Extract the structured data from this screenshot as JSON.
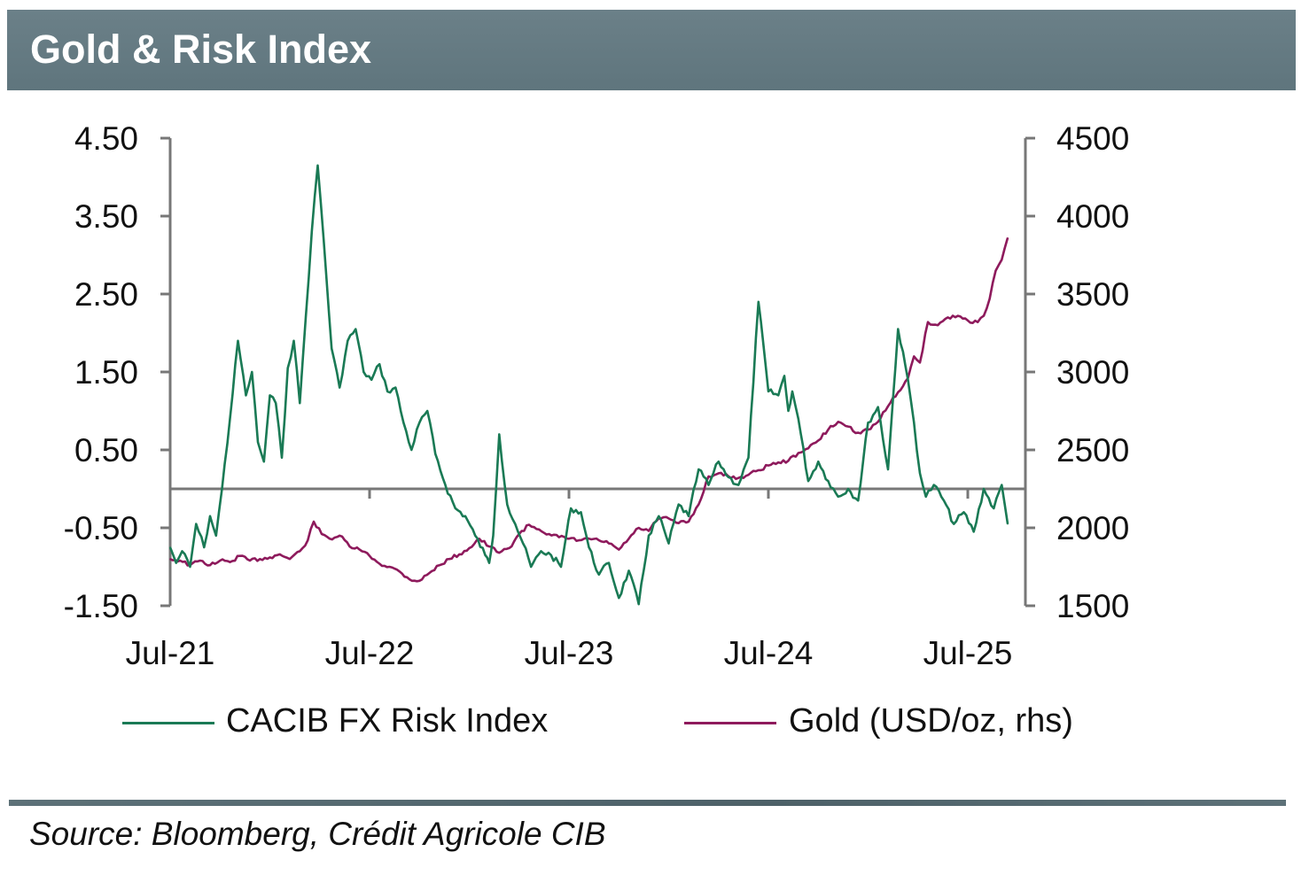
{
  "header": {
    "title": "Gold & Risk Index"
  },
  "footer": {
    "source": "Source: Bloomberg, Crédit Agricole CIB"
  },
  "colors": {
    "risk_index": "#1a7a55",
    "gold": "#8e1a5c",
    "axis": "#777777",
    "title_bar": "#667b83"
  },
  "chart_data": {
    "type": "line",
    "title": "Gold & Risk Index",
    "x_tick_labels": [
      "Jul-21",
      "Jul-22",
      "Jul-23",
      "Jul-24",
      "Jul-25"
    ],
    "x_range": [
      2021.5,
      2025.75
    ],
    "y_left": {
      "ticks": [
        "4.50",
        "3.50",
        "2.50",
        "1.50",
        "0.50",
        "-0.50",
        "-1.50"
      ],
      "range": [
        -1.5,
        4.5
      ]
    },
    "y_right": {
      "ticks": [
        "4500",
        "4000",
        "3500",
        "3000",
        "2500",
        "2000",
        "1500"
      ],
      "range": [
        1500,
        4500
      ]
    },
    "zero_line": 0,
    "legend": {
      "position": "bottom",
      "entries": [
        "CACIB FX Risk Index",
        "Gold (USD/oz, rhs)"
      ]
    },
    "series": [
      {
        "name": "CACIB FX Risk Index",
        "axis": "left",
        "x": [
          2021.5,
          2021.53,
          2021.56,
          2021.6,
          2021.63,
          2021.67,
          2021.7,
          2021.73,
          2021.76,
          2021.8,
          2021.84,
          2021.88,
          2021.91,
          2021.94,
          2021.97,
          2022.0,
          2022.03,
          2022.06,
          2022.09,
          2022.12,
          2022.15,
          2022.18,
          2022.21,
          2022.24,
          2022.27,
          2022.31,
          2022.35,
          2022.39,
          2022.43,
          2022.47,
          2022.51,
          2022.55,
          2022.59,
          2022.63,
          2022.67,
          2022.71,
          2022.75,
          2022.79,
          2022.83,
          2022.88,
          2022.93,
          2022.98,
          2023.03,
          2023.08,
          2023.1,
          2023.12,
          2023.15,
          2023.19,
          2023.23,
          2023.27,
          2023.31,
          2023.36,
          2023.41,
          2023.46,
          2023.51,
          2023.56,
          2023.6,
          2023.65,
          2023.7,
          2023.75,
          2023.8,
          2023.85,
          2023.9,
          2023.95,
          2024.0,
          2024.05,
          2024.1,
          2024.15,
          2024.2,
          2024.25,
          2024.3,
          2024.35,
          2024.4,
          2024.45,
          2024.5,
          2024.55,
          2024.58,
          2024.6,
          2024.62,
          2024.65,
          2024.7,
          2024.75,
          2024.8,
          2024.85,
          2024.9,
          2024.95,
          2025.0,
          2025.05,
          2025.1,
          2025.15,
          2025.2,
          2025.23,
          2025.26,
          2025.29,
          2025.33,
          2025.38,
          2025.43,
          2025.48,
          2025.53,
          2025.58,
          2025.63,
          2025.67,
          2025.7
        ],
        "y": [
          -0.75,
          -0.95,
          -0.8,
          -1.0,
          -0.45,
          -0.75,
          -0.35,
          -0.6,
          0.0,
          0.9,
          1.9,
          1.2,
          1.5,
          0.6,
          0.35,
          1.2,
          1.1,
          0.4,
          1.55,
          1.9,
          1.1,
          2.2,
          3.3,
          4.15,
          3.2,
          1.8,
          1.3,
          1.9,
          2.05,
          1.5,
          1.4,
          1.6,
          1.25,
          1.3,
          0.85,
          0.5,
          0.85,
          1.0,
          0.45,
          0.05,
          -0.25,
          -0.35,
          -0.6,
          -0.85,
          -0.95,
          -0.6,
          0.7,
          -0.2,
          -0.45,
          -0.7,
          -1.0,
          -0.8,
          -0.85,
          -1.0,
          -0.25,
          -0.3,
          -0.75,
          -1.1,
          -0.95,
          -1.4,
          -1.05,
          -1.48,
          -0.6,
          -0.35,
          -0.7,
          -0.2,
          -0.35,
          0.25,
          0.05,
          0.35,
          0.15,
          0.05,
          0.4,
          2.4,
          1.25,
          1.2,
          1.45,
          1.0,
          1.25,
          0.9,
          0.1,
          0.35,
          0.1,
          -0.1,
          0.0,
          -0.15,
          0.85,
          1.05,
          0.25,
          2.05,
          1.4,
          0.85,
          0.2,
          -0.1,
          0.05,
          -0.15,
          -0.45,
          -0.3,
          -0.55,
          0.0,
          -0.25,
          0.05,
          -0.45
        ]
      },
      {
        "name": "Gold (USD/oz, rhs)",
        "axis": "right",
        "x": [
          2021.5,
          2021.55,
          2021.6,
          2021.65,
          2021.7,
          2021.75,
          2021.8,
          2021.85,
          2021.9,
          2021.95,
          2022.0,
          2022.05,
          2022.1,
          2022.15,
          2022.19,
          2022.22,
          2022.26,
          2022.3,
          2022.35,
          2022.4,
          2022.45,
          2022.5,
          2022.55,
          2022.6,
          2022.65,
          2022.7,
          2022.75,
          2022.8,
          2022.85,
          2022.9,
          2022.95,
          2023.0,
          2023.05,
          2023.1,
          2023.15,
          2023.2,
          2023.25,
          2023.3,
          2023.35,
          2023.4,
          2023.45,
          2023.5,
          2023.55,
          2023.6,
          2023.65,
          2023.7,
          2023.75,
          2023.8,
          2023.85,
          2023.9,
          2023.95,
          2024.0,
          2024.05,
          2024.1,
          2024.15,
          2024.2,
          2024.25,
          2024.3,
          2024.35,
          2024.4,
          2024.45,
          2024.5,
          2024.55,
          2024.6,
          2024.65,
          2024.7,
          2024.75,
          2024.8,
          2024.85,
          2024.9,
          2024.95,
          2025.0,
          2025.05,
          2025.1,
          2025.15,
          2025.2,
          2025.23,
          2025.26,
          2025.3,
          2025.35,
          2025.4,
          2025.45,
          2025.5,
          2025.55,
          2025.58,
          2025.61,
          2025.64,
          2025.67,
          2025.7
        ],
        "y": [
          1800,
          1790,
          1760,
          1790,
          1760,
          1790,
          1780,
          1820,
          1790,
          1800,
          1810,
          1830,
          1800,
          1850,
          1920,
          2040,
          1960,
          1930,
          1950,
          1880,
          1860,
          1820,
          1770,
          1750,
          1720,
          1670,
          1660,
          1710,
          1760,
          1800,
          1830,
          1870,
          1930,
          1880,
          1840,
          1870,
          1960,
          2020,
          1990,
          1960,
          1940,
          1930,
          1920,
          1930,
          1920,
          1900,
          1860,
          1930,
          2000,
          1980,
          2060,
          2060,
          2030,
          2040,
          2150,
          2330,
          2350,
          2330,
          2320,
          2340,
          2370,
          2400,
          2420,
          2430,
          2480,
          2510,
          2560,
          2630,
          2680,
          2650,
          2610,
          2630,
          2680,
          2780,
          2870,
          2960,
          3100,
          3060,
          3320,
          3300,
          3350,
          3360,
          3330,
          3320,
          3360,
          3470,
          3650,
          3720,
          3860
        ]
      }
    ]
  }
}
